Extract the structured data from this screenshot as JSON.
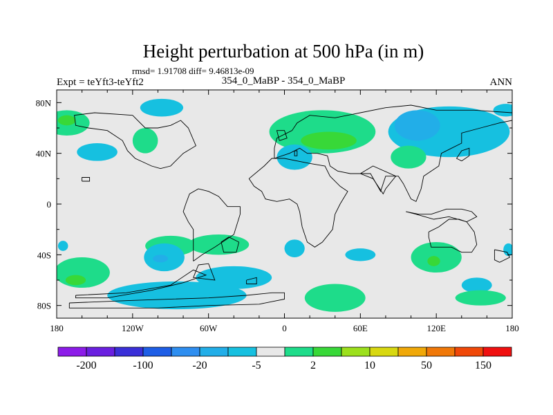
{
  "chart_data": {
    "type": "heatmap",
    "title": "Height perturbation at 500 hPa (in m)",
    "stats_label": "rmsd= 1.91708 diff= 9.46813e-09",
    "left_label": "Expt = teYft3-teYft2",
    "center_label": "354_0_MaBP - 354_0_MaBP",
    "right_label": "ANN",
    "x_range": [
      -180,
      180
    ],
    "y_range": [
      -90,
      90
    ],
    "x_ticks": [
      {
        "value": -180,
        "label": "180"
      },
      {
        "value": -120,
        "label": "120W"
      },
      {
        "value": -60,
        "label": "60W"
      },
      {
        "value": 0,
        "label": "0"
      },
      {
        "value": 60,
        "label": "60E"
      },
      {
        "value": 120,
        "label": "120E"
      },
      {
        "value": 180,
        "label": "180"
      }
    ],
    "y_ticks": [
      {
        "value": 80,
        "label": "80N"
      },
      {
        "value": 40,
        "label": "40N"
      },
      {
        "value": 0,
        "label": "0"
      },
      {
        "value": -40,
        "label": "40S"
      },
      {
        "value": -80,
        "label": "80S"
      }
    ],
    "colorbar": {
      "colors": [
        "#8c1ce8",
        "#6a1fe0",
        "#3a2fd8",
        "#1e5ee6",
        "#2e8ef0",
        "#22aee8",
        "#16c0e0",
        "#e8e8e8",
        "#1edc8a",
        "#38d838",
        "#9ce01c",
        "#d8d810",
        "#f0a808",
        "#f07808",
        "#f04808",
        "#f01010"
      ],
      "labels": [
        {
          "boundary": 1,
          "label": "-200"
        },
        {
          "boundary": 3,
          "label": "-100"
        },
        {
          "boundary": 5,
          "label": "-20"
        },
        {
          "boundary": 7,
          "label": "-5"
        },
        {
          "boundary": 9,
          "label": "2"
        },
        {
          "boundary": 11,
          "label": "10"
        },
        {
          "boundary": 13,
          "label": "50"
        },
        {
          "boundary": 15,
          "label": "150"
        }
      ]
    },
    "regions": [
      {
        "level": "5",
        "color": "#1edc8a",
        "lon": -172,
        "lat": 64,
        "rlon": 18,
        "rlat": 10
      },
      {
        "level": "5",
        "color": "#1edc8a",
        "lon": -110,
        "lat": 50,
        "rlon": 10,
        "rlat": 10
      },
      {
        "level": "6",
        "color": "#38d838",
        "lon": -172,
        "lat": 66,
        "rlon": 7,
        "rlat": 4
      },
      {
        "level": "-5",
        "color": "#16c0e0",
        "lon": -97,
        "lat": 76,
        "rlon": 17,
        "rlat": 7
      },
      {
        "level": "-5",
        "color": "#16c0e0",
        "lon": -148,
        "lat": 41,
        "rlon": 16,
        "rlat": 7
      },
      {
        "level": "5",
        "color": "#1edc8a",
        "lon": 30,
        "lat": 57,
        "rlon": 42,
        "rlat": 17
      },
      {
        "level": "6",
        "color": "#38d838",
        "lon": 35,
        "lat": 50,
        "rlon": 22,
        "rlat": 7
      },
      {
        "level": "-5",
        "color": "#16c0e0",
        "lon": 8,
        "lat": 37,
        "rlon": 14,
        "rlat": 10
      },
      {
        "level": "-5",
        "color": "#16c0e0",
        "lon": 130,
        "lat": 57,
        "rlon": 48,
        "rlat": 20
      },
      {
        "level": "-20",
        "color": "#22aee8",
        "lon": 105,
        "lat": 62,
        "rlon": 18,
        "rlat": 12
      },
      {
        "level": "5",
        "color": "#1edc8a",
        "lon": 98,
        "lat": 37,
        "rlon": 14,
        "rlat": 9
      },
      {
        "level": "-5",
        "color": "#16c0e0",
        "lon": 175,
        "lat": 74,
        "rlon": 10,
        "rlat": 5
      },
      {
        "level": "5",
        "color": "#1edc8a",
        "lon": -90,
        "lat": -33,
        "rlon": 20,
        "rlat": 8
      },
      {
        "level": "-5",
        "color": "#16c0e0",
        "lon": -95,
        "lat": -42,
        "rlon": 16,
        "rlat": 11
      },
      {
        "level": "-20",
        "color": "#22aee8",
        "lon": -98,
        "lat": -43,
        "rlon": 6,
        "rlat": 3
      },
      {
        "level": "5",
        "color": "#1edc8a",
        "lon": -52,
        "lat": -32,
        "rlon": 24,
        "rlat": 8
      },
      {
        "level": "5",
        "color": "#1edc8a",
        "lon": -160,
        "lat": -54,
        "rlon": 22,
        "rlat": 12
      },
      {
        "level": "6",
        "color": "#38d838",
        "lon": -165,
        "lat": -60,
        "rlon": 8,
        "rlat": 4
      },
      {
        "level": "-5",
        "color": "#16c0e0",
        "lon": -85,
        "lat": -72,
        "rlon": 55,
        "rlat": 11
      },
      {
        "level": "-5",
        "color": "#16c0e0",
        "lon": -40,
        "lat": -58,
        "rlon": 30,
        "rlat": 9
      },
      {
        "level": "-5",
        "color": "#16c0e0",
        "lon": 8,
        "lat": -35,
        "rlon": 8,
        "rlat": 7
      },
      {
        "level": "-5",
        "color": "#16c0e0",
        "lon": 60,
        "lat": -40,
        "rlon": 12,
        "rlat": 5
      },
      {
        "level": "5",
        "color": "#1edc8a",
        "lon": 40,
        "lat": -74,
        "rlon": 24,
        "rlat": 11
      },
      {
        "level": "5",
        "color": "#1edc8a",
        "lon": 120,
        "lat": -42,
        "rlon": 20,
        "rlat": 12
      },
      {
        "level": "6",
        "color": "#38d838",
        "lon": 118,
        "lat": -45,
        "rlon": 5,
        "rlat": 4
      },
      {
        "level": "-5",
        "color": "#16c0e0",
        "lon": 152,
        "lat": -64,
        "rlon": 12,
        "rlat": 6
      },
      {
        "level": "5",
        "color": "#1edc8a",
        "lon": 155,
        "lat": -74,
        "rlon": 20,
        "rlat": 6
      },
      {
        "level": "-5",
        "color": "#16c0e0",
        "lon": 177,
        "lat": -36,
        "rlon": 4,
        "rlat": 5
      },
      {
        "level": "-5",
        "color": "#16c0e0",
        "lon": -175,
        "lat": -33,
        "rlon": 4,
        "rlat": 4
      }
    ],
    "coastlines": [
      [
        [
          -170,
          -78
        ],
        [
          -120,
          -76
        ],
        [
          -60,
          -74
        ],
        [
          -30,
          -72
        ],
        [
          -10,
          -70
        ],
        [
          0,
          -70
        ],
        [
          0,
          -75
        ],
        [
          -20,
          -79
        ],
        [
          -60,
          -80
        ],
        [
          -100,
          -82
        ],
        [
          -150,
          -82
        ],
        [
          -170,
          -82
        ],
        [
          -170,
          -78
        ]
      ],
      [
        [
          -165,
          -72
        ],
        [
          -125,
          -70
        ],
        [
          -90,
          -64
        ],
        [
          -72,
          -52
        ],
        [
          -62,
          -56
        ],
        [
          -80,
          -62
        ],
        [
          -105,
          -68
        ],
        [
          -140,
          -74
        ],
        [
          -165,
          -74
        ],
        [
          -165,
          -72
        ]
      ],
      [
        [
          -68,
          -48
        ],
        [
          -60,
          -47
        ],
        [
          -55,
          -60
        ],
        [
          -72,
          -58
        ],
        [
          -68,
          -48
        ]
      ],
      [
        [
          -30,
          -60
        ],
        [
          -22,
          -58
        ],
        [
          -22,
          -63
        ],
        [
          -30,
          -63
        ],
        [
          -30,
          -60
        ]
      ],
      [
        [
          -72,
          -45
        ],
        [
          -65,
          -40
        ],
        [
          -55,
          -34
        ],
        [
          -40,
          -24
        ],
        [
          -35,
          -8
        ],
        [
          -35,
          -2
        ],
        [
          -45,
          -2
        ],
        [
          -52,
          6
        ],
        [
          -60,
          10
        ],
        [
          -68,
          12
        ],
        [
          -75,
          8
        ],
        [
          -78,
          0
        ],
        [
          -80,
          -6
        ],
        [
          -76,
          -14
        ],
        [
          -72,
          -20
        ],
        [
          -72,
          -30
        ],
        [
          -72,
          -45
        ]
      ],
      [
        [
          -36,
          -30
        ],
        [
          -38,
          -38
        ],
        [
          -48,
          -38
        ],
        [
          -50,
          -30
        ],
        [
          -44,
          -26
        ],
        [
          -36,
          -30
        ]
      ],
      [
        [
          -28,
          20
        ],
        [
          -24,
          14
        ],
        [
          -18,
          10
        ],
        [
          -15,
          4
        ],
        [
          -6,
          2
        ],
        [
          4,
          4
        ],
        [
          10,
          0
        ],
        [
          12,
          -6
        ],
        [
          14,
          -18
        ],
        [
          18,
          -30
        ],
        [
          24,
          -34
        ],
        [
          30,
          -30
        ],
        [
          38,
          -20
        ],
        [
          40,
          -8
        ],
        [
          44,
          0
        ],
        [
          50,
          10
        ],
        [
          44,
          14
        ],
        [
          36,
          22
        ],
        [
          32,
          30
        ],
        [
          20,
          32
        ],
        [
          10,
          34
        ],
        [
          0,
          36
        ],
        [
          -10,
          36
        ],
        [
          -16,
          30
        ],
        [
          -28,
          20
        ]
      ],
      [
        [
          -120,
          70
        ],
        [
          -110,
          60
        ],
        [
          -100,
          60
        ],
        [
          -90,
          62
        ],
        [
          -82,
          66
        ],
        [
          -76,
          60
        ],
        [
          -70,
          46
        ],
        [
          -80,
          40
        ],
        [
          -90,
          30
        ],
        [
          -98,
          28
        ],
        [
          -105,
          30
        ],
        [
          -118,
          36
        ],
        [
          -124,
          42
        ],
        [
          -128,
          50
        ],
        [
          -140,
          58
        ],
        [
          -155,
          60
        ],
        [
          -165,
          62
        ],
        [
          -166,
          70
        ],
        [
          -150,
          72
        ],
        [
          -120,
          70
        ]
      ],
      [
        [
          -8,
          36
        ],
        [
          4,
          40
        ],
        [
          12,
          44
        ],
        [
          18,
          40
        ],
        [
          26,
          40
        ],
        [
          34,
          38
        ],
        [
          36,
          30
        ],
        [
          42,
          26
        ],
        [
          52,
          24
        ],
        [
          58,
          24
        ],
        [
          62,
          24
        ],
        [
          68,
          24
        ],
        [
          76,
          10
        ],
        [
          80,
          22
        ],
        [
          90,
          22
        ],
        [
          94,
          16
        ],
        [
          100,
          4
        ],
        [
          104,
          2
        ],
        [
          108,
          12
        ],
        [
          110,
          22
        ],
        [
          122,
          30
        ],
        [
          124,
          40
        ],
        [
          132,
          44
        ],
        [
          140,
          48
        ],
        [
          140,
          56
        ],
        [
          155,
          60
        ],
        [
          170,
          64
        ],
        [
          180,
          66
        ],
        [
          180,
          72
        ],
        [
          150,
          74
        ],
        [
          120,
          74
        ],
        [
          100,
          78
        ],
        [
          80,
          76
        ],
        [
          60,
          72
        ],
        [
          40,
          68
        ],
        [
          20,
          70
        ],
        [
          10,
          64
        ],
        [
          6,
          58
        ],
        [
          -6,
          52
        ],
        [
          -8,
          44
        ],
        [
          -8,
          36
        ]
      ],
      [
        [
          60,
          24
        ],
        [
          70,
          20
        ],
        [
          78,
          8
        ],
        [
          80,
          12
        ],
        [
          88,
          22
        ],
        [
          70,
          30
        ],
        [
          60,
          24
        ]
      ],
      [
        [
          96,
          -6
        ],
        [
          106,
          -8
        ],
        [
          116,
          -8
        ],
        [
          128,
          -4
        ],
        [
          140,
          -4
        ],
        [
          148,
          -6
        ],
        [
          152,
          -10
        ],
        [
          144,
          -14
        ],
        [
          130,
          -10
        ],
        [
          118,
          -12
        ],
        [
          104,
          -8
        ],
        [
          96,
          -6
        ]
      ],
      [
        [
          114,
          -22
        ],
        [
          122,
          -18
        ],
        [
          130,
          -12
        ],
        [
          138,
          -12
        ],
        [
          144,
          -14
        ],
        [
          150,
          -22
        ],
        [
          152,
          -32
        ],
        [
          148,
          -38
        ],
        [
          140,
          -38
        ],
        [
          132,
          -34
        ],
        [
          124,
          -34
        ],
        [
          116,
          -34
        ],
        [
          114,
          -26
        ],
        [
          114,
          -22
        ]
      ],
      [
        [
          166,
          -36
        ],
        [
          176,
          -38
        ],
        [
          178,
          -42
        ],
        [
          170,
          -46
        ],
        [
          166,
          -44
        ],
        [
          166,
          -36
        ]
      ],
      [
        [
          -4,
          50
        ],
        [
          2,
          52
        ],
        [
          0,
          58
        ],
        [
          -6,
          58
        ],
        [
          -4,
          50
        ]
      ],
      [
        [
          8,
          42
        ],
        [
          10,
          42
        ],
        [
          10,
          38
        ],
        [
          8,
          38
        ],
        [
          8,
          42
        ]
      ],
      [
        [
          -160,
          18
        ],
        [
          -154,
          18
        ],
        [
          -154,
          21
        ],
        [
          -160,
          21
        ],
        [
          -160,
          18
        ]
      ],
      [
        [
          140,
          34
        ],
        [
          146,
          38
        ],
        [
          146,
          44
        ],
        [
          140,
          42
        ],
        [
          136,
          36
        ],
        [
          140,
          34
        ]
      ]
    ]
  }
}
